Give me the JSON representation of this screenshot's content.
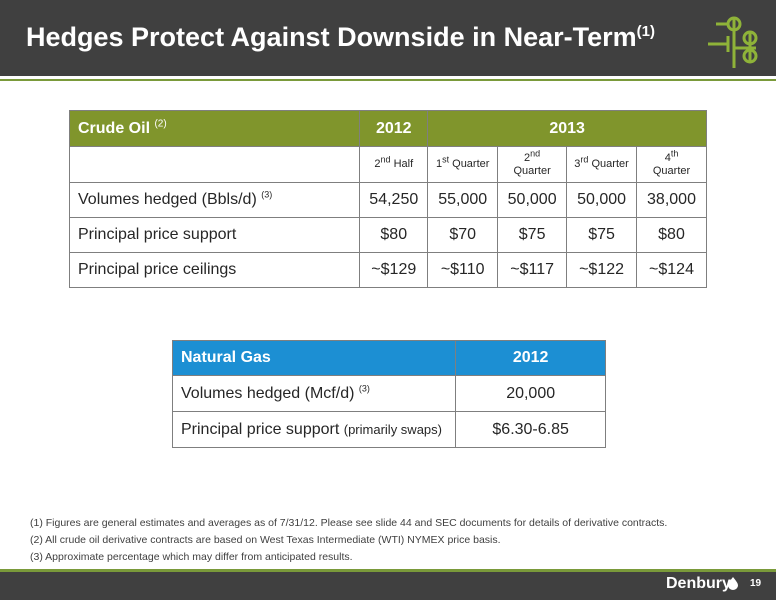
{
  "header": {
    "title": "Hedges Protect Against Downside in Near-Term",
    "title_sup": "(1)"
  },
  "oil_table": {
    "corner_label": "Crude Oil",
    "corner_sup": "(2)",
    "year_2012": "2012",
    "year_2013": "2013",
    "periods": [
      {
        "num": "2",
        "sup": "nd",
        "text": " Half"
      },
      {
        "num": "1",
        "sup": "st",
        "text": " Quarter"
      },
      {
        "num": "2",
        "sup": "nd",
        "text": "Quarter"
      },
      {
        "num": "3",
        "sup": "rd",
        "text": " Quarter"
      },
      {
        "num": "4",
        "sup": "th",
        "text": "Quarter"
      }
    ],
    "rows": [
      {
        "label": "Volumes hedged (Bbls/d)",
        "sup": "(3)",
        "values": [
          "54,250",
          "55,000",
          "50,000",
          "50,000",
          "38,000"
        ]
      },
      {
        "label": "Principal price support",
        "sup": "",
        "values": [
          "$80",
          "$70",
          "$75",
          "$75",
          "$80"
        ]
      },
      {
        "label": "Principal price ceilings",
        "sup": "",
        "values": [
          "~$129",
          "~$110",
          "~$117",
          "~$122",
          "~$124"
        ]
      }
    ]
  },
  "gas_table": {
    "corner_label": "Natural Gas",
    "year": "2012",
    "row1_label": "Volumes hedged (Mcf/d)",
    "row1_sup": "(3)",
    "row1_value": "20,000",
    "row2_label": "Principal price support",
    "row2_note": "(primarily swaps)",
    "row2_value": "$6.30-6.85"
  },
  "footnotes": [
    "(1)  Figures are general estimates and averages as of 7/31/12. Please see slide 44 and SEC documents for details of derivative contracts.",
    "(2)  All crude oil derivative contracts are based on West Texas Intermediate (WTI) NYMEX price basis.",
    "(3)  Approximate percentage which may differ from anticipated results."
  ],
  "footer": {
    "brand": "Denbury",
    "page_number": "19"
  },
  "colors": {
    "oil_header": "#80952c",
    "gas_header": "#1c8fd3",
    "dark_bar": "#404040"
  }
}
